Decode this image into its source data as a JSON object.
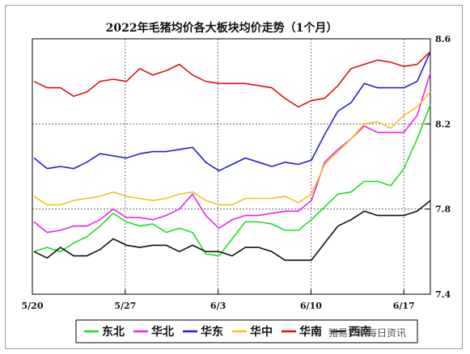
{
  "chart_data": {
    "type": "line",
    "title": "2022年毛猪均价各大板块均价走势（1个月）",
    "x_tick_labels": [
      "5/20",
      "5/27",
      "6/3",
      "6/10",
      "6/17"
    ],
    "y_tick_labels": [
      "7.4",
      "7.8",
      "8.2",
      "8.6"
    ],
    "ylim": [
      7.4,
      8.6
    ],
    "y_axis_position": "right",
    "grid": "dashed",
    "legend_position": "bottom",
    "n_points": 31,
    "series": [
      {
        "name": "东北",
        "color": "#22dd22",
        "values": [
          7.6,
          7.62,
          7.6,
          7.64,
          7.67,
          7.72,
          7.78,
          7.74,
          7.72,
          7.73,
          7.69,
          7.71,
          7.69,
          7.59,
          7.58,
          7.66,
          7.74,
          7.74,
          7.73,
          7.7,
          7.7,
          7.75,
          7.81,
          7.87,
          7.88,
          7.93,
          7.93,
          7.91,
          7.99,
          8.13,
          8.29
        ]
      },
      {
        "name": "华北",
        "color": "#ee22ee",
        "values": [
          7.74,
          7.69,
          7.7,
          7.72,
          7.72,
          7.75,
          7.8,
          7.76,
          7.76,
          7.75,
          7.77,
          7.8,
          7.87,
          7.77,
          7.71,
          7.75,
          7.77,
          7.77,
          7.78,
          7.79,
          7.79,
          7.84,
          8.02,
          8.08,
          8.13,
          8.19,
          8.16,
          8.16,
          8.16,
          8.24,
          8.44
        ]
      },
      {
        "name": "华东",
        "color": "#2222cc",
        "values": [
          8.04,
          7.99,
          8.0,
          7.99,
          8.02,
          8.06,
          8.05,
          8.04,
          8.06,
          8.07,
          8.07,
          8.08,
          8.09,
          8.02,
          7.98,
          8.01,
          8.04,
          8.02,
          8.0,
          8.02,
          8.01,
          8.03,
          8.15,
          8.26,
          8.3,
          8.39,
          8.37,
          8.37,
          8.37,
          8.4,
          8.54
        ]
      },
      {
        "name": "华中",
        "color": "#f2c21a",
        "values": [
          7.86,
          7.82,
          7.82,
          7.84,
          7.85,
          7.86,
          7.88,
          7.86,
          7.85,
          7.84,
          7.85,
          7.87,
          7.88,
          7.84,
          7.82,
          7.82,
          7.85,
          7.85,
          7.85,
          7.86,
          7.83,
          7.87,
          8.01,
          8.07,
          8.13,
          8.2,
          8.21,
          8.18,
          8.24,
          8.28,
          8.35
        ]
      },
      {
        "name": "华南",
        "color": "#dd1111",
        "values": [
          8.4,
          8.37,
          8.37,
          8.33,
          8.35,
          8.4,
          8.41,
          8.4,
          8.46,
          8.43,
          8.45,
          8.48,
          8.43,
          8.4,
          8.39,
          8.39,
          8.39,
          8.38,
          8.37,
          8.32,
          8.28,
          8.31,
          8.32,
          8.38,
          8.46,
          8.48,
          8.5,
          8.49,
          8.47,
          8.48,
          8.54
        ]
      },
      {
        "name": "西南",
        "color": "#111111",
        "values": [
          7.6,
          7.57,
          7.62,
          7.58,
          7.58,
          7.61,
          7.66,
          7.63,
          7.62,
          7.63,
          7.63,
          7.6,
          7.63,
          7.6,
          7.6,
          7.58,
          7.62,
          7.62,
          7.6,
          7.56,
          7.56,
          7.56,
          7.64,
          7.72,
          7.75,
          7.79,
          7.77,
          7.77,
          7.77,
          7.79,
          7.84
        ]
      }
    ]
  },
  "legend": {
    "items": [
      "东北",
      "华北",
      "华东",
      "华中",
      "华南",
      "西南"
    ]
  },
  "watermark": "猪易罗斯每日资讯"
}
